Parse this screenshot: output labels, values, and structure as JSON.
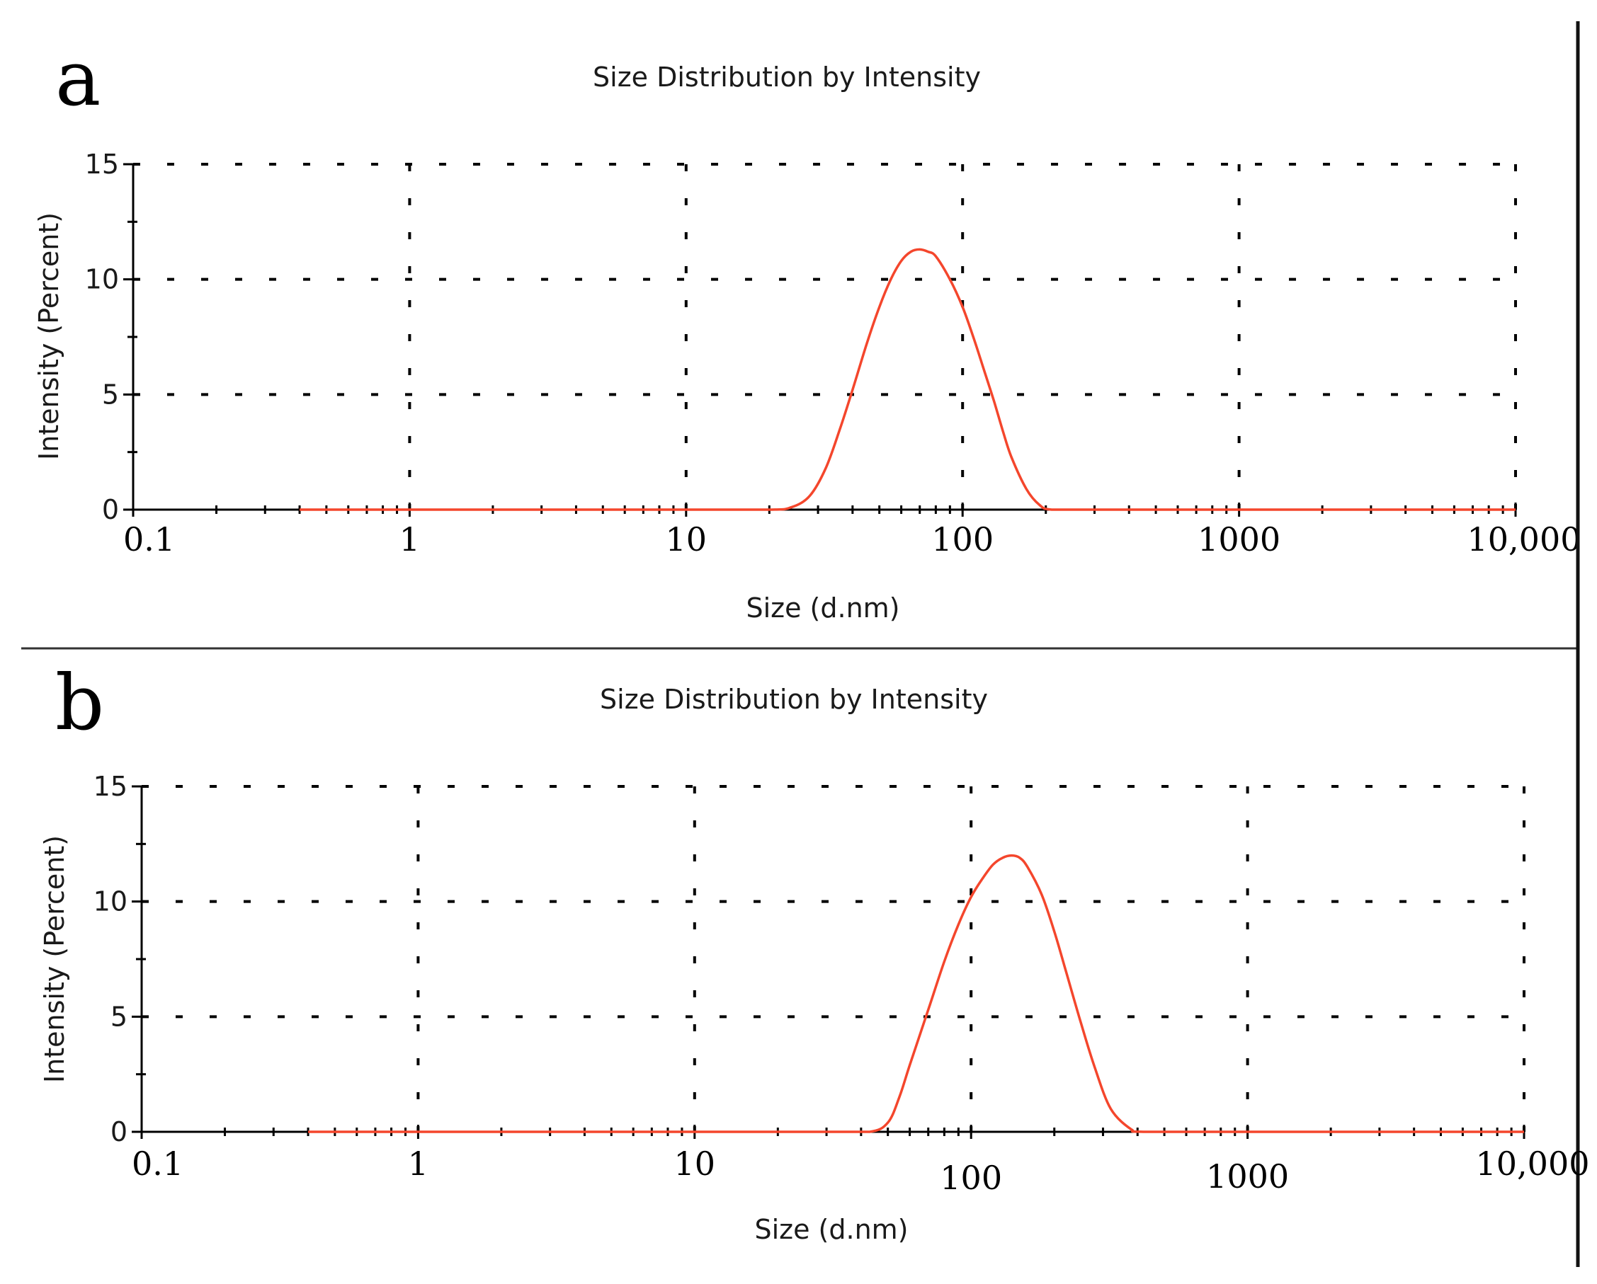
{
  "panels": [
    {
      "label": "a"
    },
    {
      "label": "b"
    }
  ],
  "colors": {
    "curve": "#f4462c",
    "axis": "#000000",
    "grid": "#000000",
    "text": "#1a1a1a"
  },
  "chart_data": [
    {
      "type": "line",
      "title": "Size Distribution by Intensity",
      "xlabel": "Size (d.nm)",
      "ylabel": "Intensity (Percent)",
      "xscale": "log",
      "xlim": [
        0.1,
        10000
      ],
      "ylim": [
        0,
        15
      ],
      "xticks": [
        0.1,
        1,
        10,
        100,
        1000,
        10000
      ],
      "xtick_labels": [
        "0.1",
        "1",
        "10",
        "100",
        "1000",
        "10,000"
      ],
      "yticks": [
        0,
        5,
        10,
        15
      ],
      "ytick_labels": [
        "0",
        "5",
        "10",
        "15"
      ],
      "grid": true,
      "series": [
        {
          "x": [
            0.4,
            1,
            5,
            10,
            20,
            24,
            28,
            32,
            36,
            40,
            45,
            50,
            55,
            60,
            65,
            70,
            75,
            80,
            90,
            100,
            110,
            120,
            130,
            140,
            150,
            170,
            190,
            210,
            300,
            1000,
            10000
          ],
          "y": [
            0,
            0,
            0,
            0,
            0,
            0.1,
            0.6,
            1.8,
            3.5,
            5.2,
            7.2,
            8.8,
            10.0,
            10.8,
            11.2,
            11.3,
            11.2,
            11.0,
            10.0,
            8.8,
            7.4,
            6.0,
            4.7,
            3.4,
            2.3,
            0.9,
            0.2,
            0,
            0,
            0,
            0
          ]
        }
      ]
    },
    {
      "type": "line",
      "title": "Size Distribution by Intensity",
      "xlabel": "Size (d.nm)",
      "ylabel": "Intensity (Percent)",
      "xscale": "log",
      "xlim": [
        0.1,
        10000
      ],
      "ylim": [
        0,
        15
      ],
      "xticks": [
        0.1,
        1,
        10,
        100,
        1000,
        10000
      ],
      "xtick_labels": [
        "0.1",
        "1",
        "10",
        "100",
        "1000",
        "10,000"
      ],
      "yticks": [
        0,
        5,
        10,
        15
      ],
      "ytick_labels": [
        "0",
        "5",
        "10",
        "15"
      ],
      "grid": true,
      "series": [
        {
          "x": [
            0.4,
            1,
            10,
            30,
            43,
            50,
            55,
            60,
            70,
            80,
            90,
            100,
            110,
            120,
            130,
            140,
            150,
            160,
            180,
            200,
            220,
            250,
            280,
            320,
            380,
            420,
            1000,
            10000
          ],
          "y": [
            0,
            0,
            0,
            0,
            0,
            0.4,
            1.5,
            2.9,
            5.3,
            7.4,
            9.0,
            10.2,
            11.0,
            11.6,
            11.9,
            12.0,
            11.9,
            11.5,
            10.3,
            8.7,
            7.0,
            4.7,
            2.8,
            1.0,
            0.1,
            0,
            0,
            0
          ]
        }
      ]
    }
  ]
}
